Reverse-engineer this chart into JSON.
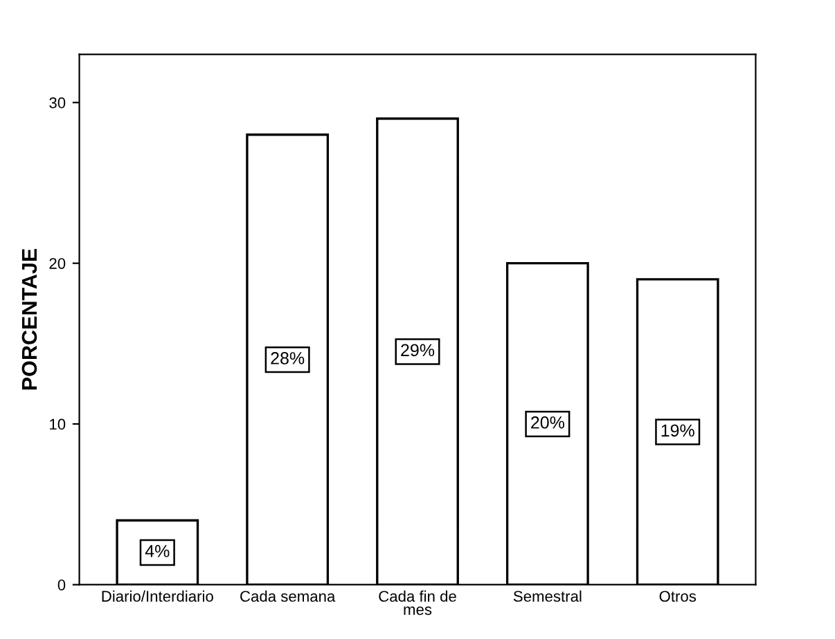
{
  "chart_data": {
    "type": "bar",
    "ylabel": "PORCENTAJE",
    "categories": [
      "Diario/Interdiario",
      "Cada semana",
      "Cada fin de\nmes",
      "Semestral",
      "Otros"
    ],
    "values": [
      4,
      28,
      29,
      20,
      19
    ],
    "value_labels": [
      "4%",
      "28%",
      "29%",
      "20%",
      "19%"
    ],
    "color": "#ffffff",
    "ylim": [
      0,
      33
    ],
    "yticks": [
      0,
      10,
      20,
      30
    ],
    "grid": false
  }
}
